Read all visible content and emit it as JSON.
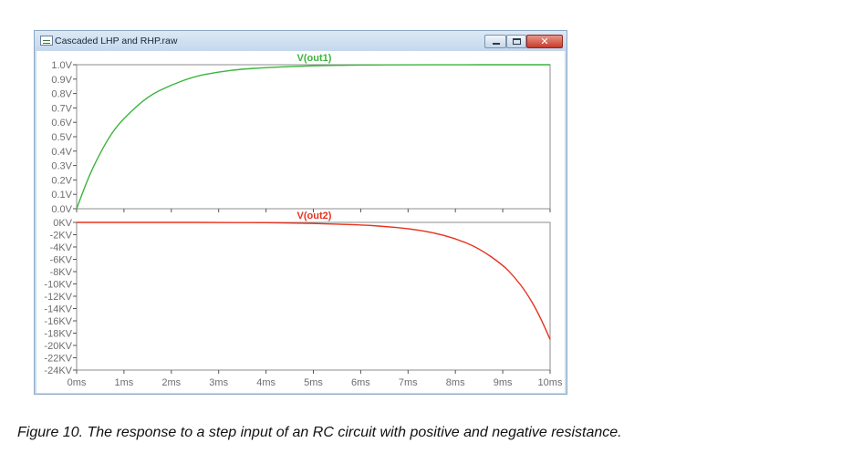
{
  "window": {
    "title": "Cascaded LHP and RHP.raw",
    "buttons": {
      "minimize": "minimize",
      "maximize": "maximize",
      "close": "close"
    },
    "close_glyph": "✕"
  },
  "caption": "Figure 10. The response to a step input of an RC circuit with positive and negative resistance.",
  "chart_data": [
    {
      "type": "line",
      "title": "V(out1)",
      "color": "#3cb43c",
      "x_ticks": [
        "0ms",
        "1ms",
        "2ms",
        "3ms",
        "4ms",
        "5ms",
        "6ms",
        "7ms",
        "8ms",
        "9ms",
        "10ms"
      ],
      "y_ticks": [
        "0.0V",
        "0.1V",
        "0.2V",
        "0.3V",
        "0.4V",
        "0.5V",
        "0.6V",
        "0.7V",
        "0.8V",
        "0.9V",
        "1.0V"
      ],
      "xlim": [
        0,
        10
      ],
      "ylim": [
        0,
        1.0
      ],
      "x": [
        0,
        0.25,
        0.5,
        0.75,
        1,
        1.5,
        2,
        2.5,
        3,
        3.5,
        4,
        5,
        6,
        7,
        8,
        9,
        10
      ],
      "values": [
        0,
        0.22,
        0.39,
        0.53,
        0.63,
        0.78,
        0.86,
        0.92,
        0.95,
        0.97,
        0.98,
        0.993,
        0.998,
        0.999,
        1.0,
        1.0,
        1.0
      ]
    },
    {
      "type": "line",
      "title": "V(out2)",
      "color": "#e8321e",
      "x_ticks": [
        "0ms",
        "1ms",
        "2ms",
        "3ms",
        "4ms",
        "5ms",
        "6ms",
        "7ms",
        "8ms",
        "9ms",
        "10ms"
      ],
      "y_ticks": [
        "0KV",
        "-2KV",
        "-4KV",
        "-6KV",
        "-8KV",
        "-10KV",
        "-12KV",
        "-14KV",
        "-16KV",
        "-18KV",
        "-20KV",
        "-22KV",
        "-24KV"
      ],
      "xlim": [
        0,
        10
      ],
      "ylim": [
        -24,
        0
      ],
      "x": [
        0,
        1,
        2,
        3,
        4,
        5,
        6,
        6.5,
        7,
        7.5,
        8,
        8.5,
        9,
        9.25,
        9.5,
        9.75,
        10
      ],
      "values": [
        0,
        0,
        0,
        -0.01,
        -0.05,
        -0.15,
        -0.4,
        -0.65,
        -1.0,
        -1.6,
        -2.6,
        -4.2,
        -6.9,
        -8.9,
        -11.4,
        -14.7,
        -19.0
      ]
    }
  ]
}
